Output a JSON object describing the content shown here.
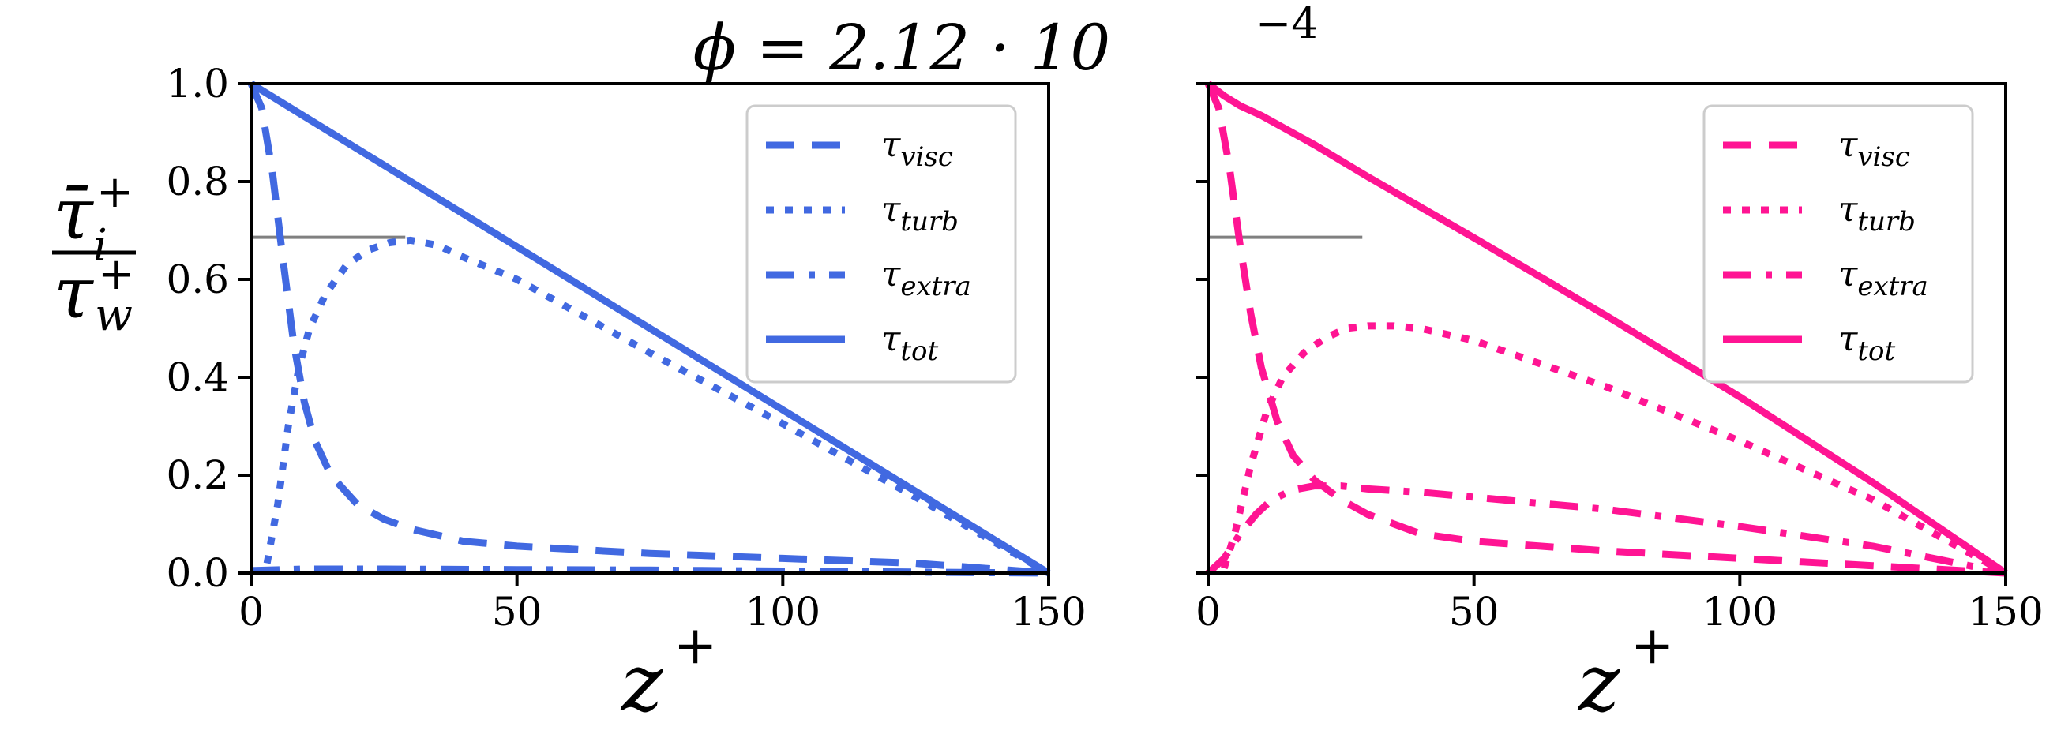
{
  "figure_title": "ϕ = 2.12 · 10",
  "figure_title_exponent": "−4",
  "y_axis_label": {
    "numerator": "τ̄",
    "numerator_sub": "i",
    "numerator_sup": "+",
    "denominator": "τ",
    "denominator_sub": "w",
    "denominator_sup": "+"
  },
  "chart_data": [
    {
      "type": "line",
      "panel": "left",
      "color": "#4169e1",
      "xlabel": "z",
      "xlabel_sup": "+",
      "xlim": [
        0,
        150
      ],
      "ylim": [
        0,
        1
      ],
      "x_ticks": [
        0,
        50,
        100,
        150
      ],
      "x_tick_labels": [
        "0",
        "50",
        "100",
        "150"
      ],
      "y_ticks": [
        0,
        0.2,
        0.4,
        0.6,
        0.8,
        1.0
      ],
      "y_tick_labels": [
        "0.0",
        "0.2",
        "0.4",
        "0.6",
        "0.8",
        "1.0"
      ],
      "legend_position": "top-right",
      "reference_line": {
        "y": 0.686,
        "x_start": 0,
        "x_end": 29,
        "color": "#808080"
      },
      "series": [
        {
          "name": "τ",
          "sub": "visc",
          "style": "dashed",
          "x": [
            0,
            2,
            4,
            6,
            8,
            10,
            12,
            15,
            20,
            25,
            30,
            40,
            50,
            75,
            100,
            125,
            150
          ],
          "y": [
            1.0,
            0.95,
            0.82,
            0.64,
            0.47,
            0.35,
            0.27,
            0.2,
            0.14,
            0.11,
            0.09,
            0.065,
            0.055,
            0.04,
            0.03,
            0.02,
            0.0
          ]
        },
        {
          "name": "τ",
          "sub": "turb",
          "style": "dotted",
          "x": [
            3,
            5,
            7,
            9,
            11,
            14,
            18,
            22,
            26,
            30,
            35,
            40,
            50,
            75,
            100,
            125,
            150
          ],
          "y": [
            0.02,
            0.14,
            0.3,
            0.42,
            0.5,
            0.57,
            0.63,
            0.66,
            0.675,
            0.68,
            0.67,
            0.645,
            0.6,
            0.45,
            0.305,
            0.155,
            0.0
          ]
        },
        {
          "name": "τ",
          "sub": "extra",
          "style": "dashdot",
          "x": [
            0,
            10,
            25,
            50,
            75,
            100,
            125,
            150
          ],
          "y": [
            0.005,
            0.008,
            0.008,
            0.007,
            0.006,
            0.004,
            0.002,
            0.0
          ]
        },
        {
          "name": "τ",
          "sub": "tot",
          "style": "solid",
          "x": [
            0,
            150
          ],
          "y": [
            1.0,
            0.0
          ]
        }
      ]
    },
    {
      "type": "line",
      "panel": "right",
      "color": "#ff1493",
      "xlabel": "z",
      "xlabel_sup": "+",
      "xlim": [
        0,
        150
      ],
      "ylim": [
        0,
        1
      ],
      "x_ticks": [
        0,
        50,
        100,
        150
      ],
      "x_tick_labels": [
        "0",
        "50",
        "100",
        "150"
      ],
      "y_ticks": [
        0,
        0.2,
        0.4,
        0.6,
        0.8,
        1.0
      ],
      "y_tick_labels": [
        "",
        "",
        "",
        "",
        "",
        ""
      ],
      "legend_position": "top-right",
      "reference_line": {
        "y": 0.686,
        "x_start": 0,
        "x_end": 29,
        "color": "#808080"
      },
      "series": [
        {
          "name": "τ",
          "sub": "visc",
          "style": "dashed",
          "x": [
            0,
            2,
            4,
            6,
            8,
            10,
            13,
            16,
            20,
            25,
            30,
            40,
            50,
            75,
            100,
            125,
            150
          ],
          "y": [
            1.0,
            0.95,
            0.83,
            0.67,
            0.53,
            0.42,
            0.31,
            0.24,
            0.19,
            0.15,
            0.12,
            0.08,
            0.065,
            0.045,
            0.03,
            0.015,
            0.0
          ]
        },
        {
          "name": "τ",
          "sub": "turb",
          "style": "dotted",
          "x": [
            3,
            5,
            8,
            11,
            14,
            18,
            22,
            26,
            30,
            35,
            40,
            50,
            75,
            100,
            125,
            150
          ],
          "y": [
            0.01,
            0.08,
            0.22,
            0.33,
            0.4,
            0.45,
            0.48,
            0.5,
            0.505,
            0.505,
            0.5,
            0.475,
            0.38,
            0.27,
            0.15,
            0.0
          ]
        },
        {
          "name": "τ",
          "sub": "extra",
          "style": "dashdot",
          "x": [
            0,
            3,
            6,
            9,
            12,
            16,
            20,
            25,
            30,
            40,
            50,
            75,
            100,
            125,
            150
          ],
          "y": [
            0.0,
            0.03,
            0.08,
            0.12,
            0.15,
            0.17,
            0.178,
            0.178,
            0.172,
            0.165,
            0.155,
            0.13,
            0.095,
            0.055,
            0.0
          ]
        },
        {
          "name": "τ",
          "sub": "tot",
          "style": "solid",
          "x": [
            0,
            3,
            6,
            10,
            20,
            30,
            50,
            75,
            100,
            125,
            150
          ],
          "y": [
            1.0,
            0.975,
            0.955,
            0.935,
            0.875,
            0.81,
            0.685,
            0.525,
            0.36,
            0.185,
            0.0
          ]
        }
      ]
    }
  ]
}
